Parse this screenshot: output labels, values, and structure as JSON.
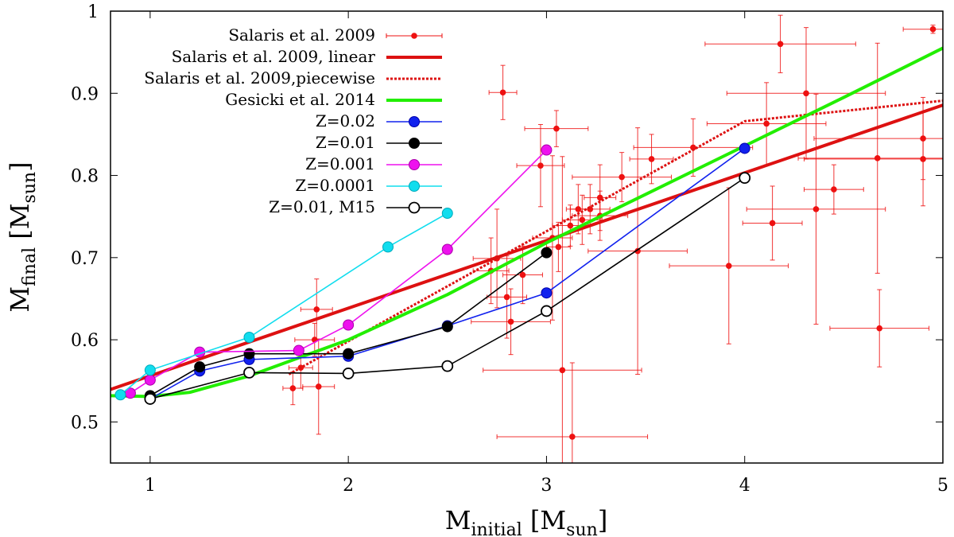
{
  "chart_data": {
    "type": "scatter",
    "xlabel": {
      "main": "M",
      "sub": "initial",
      "unit_open": " [M",
      "unit_sub": "sun",
      "unit_close": "]"
    },
    "ylabel": {
      "main": "M",
      "sub": "final",
      "unit_open": " [M",
      "unit_sub": "sun",
      "unit_close": "]"
    },
    "xlim": [
      0.8,
      5.0
    ],
    "ylim": [
      0.45,
      1.0
    ],
    "xticks": [
      1,
      2,
      3,
      4,
      5
    ],
    "xtick_labels": [
      "1",
      "2",
      "3",
      "4",
      "5"
    ],
    "yticks": [
      0.5,
      0.6,
      0.7,
      0.8,
      0.9,
      1.0
    ],
    "ytick_labels": [
      "0.5",
      "0.6",
      "0.7",
      "0.8",
      "0.9",
      "1"
    ],
    "legend_position": "top-left",
    "observations": {
      "name": "Salaris et al. 2009",
      "color": "#ee1111",
      "points": [
        {
          "x": 1.72,
          "y": 0.541,
          "xe": 0.05,
          "ye": 0.02
        },
        {
          "x": 1.76,
          "y": 0.566,
          "xe": 0.06,
          "ye": 0.025
        },
        {
          "x": 1.84,
          "y": 0.637,
          "xe": 0.08,
          "ye": 0.037
        },
        {
          "x": 1.85,
          "y": 0.543,
          "xe": 0.08,
          "ye": 0.058
        },
        {
          "x": 1.83,
          "y": 0.6,
          "xe": 0.1,
          "ye": 0.02
        },
        {
          "x": 2.78,
          "y": 0.901,
          "xe": 0.07,
          "ye": 0.033
        },
        {
          "x": 2.72,
          "y": 0.684,
          "xe": 0.09,
          "ye": 0.04
        },
        {
          "x": 2.75,
          "y": 0.699,
          "xe": 0.12,
          "ye": 0.06
        },
        {
          "x": 2.8,
          "y": 0.652,
          "xe": 0.1,
          "ye": 0.05
        },
        {
          "x": 2.82,
          "y": 0.622,
          "xe": 0.2,
          "ye": 0.04
        },
        {
          "x": 2.88,
          "y": 0.679,
          "xe": 0.1,
          "ye": 0.035
        },
        {
          "x": 2.97,
          "y": 0.812,
          "xe": 0.12,
          "ye": 0.05
        },
        {
          "x": 3.05,
          "y": 0.857,
          "xe": 0.16,
          "ye": 0.022
        },
        {
          "x": 3.03,
          "y": 0.724,
          "xe": 0.1,
          "ye": 0.1
        },
        {
          "x": 3.06,
          "y": 0.713,
          "xe": 0.06,
          "ye": 0.03
        },
        {
          "x": 3.08,
          "y": 0.563,
          "xe": 0.4,
          "ye": 0.26
        },
        {
          "x": 3.13,
          "y": 0.482,
          "xe": 0.38,
          "ye": 0.09
        },
        {
          "x": 3.12,
          "y": 0.739,
          "xe": 0.09,
          "ye": 0.025
        },
        {
          "x": 3.16,
          "y": 0.759,
          "xe": 0.06,
          "ye": 0.03
        },
        {
          "x": 3.18,
          "y": 0.746,
          "xe": 0.1,
          "ye": 0.03
        },
        {
          "x": 3.22,
          "y": 0.759,
          "xe": 0.1,
          "ye": 0.03
        },
        {
          "x": 3.27,
          "y": 0.773,
          "xe": 0.08,
          "ye": 0.04
        },
        {
          "x": 3.27,
          "y": 0.751,
          "xe": 0.14,
          "ye": 0.03
        },
        {
          "x": 3.38,
          "y": 0.798,
          "xe": 0.25,
          "ye": 0.03
        },
        {
          "x": 3.46,
          "y": 0.708,
          "xe": 0.25,
          "ye": 0.15
        },
        {
          "x": 3.53,
          "y": 0.82,
          "xe": 0.11,
          "ye": 0.03
        },
        {
          "x": 3.74,
          "y": 0.834,
          "xe": 0.3,
          "ye": 0.035
        },
        {
          "x": 3.92,
          "y": 0.69,
          "xe": 0.3,
          "ye": 0.095
        },
        {
          "x": 4.11,
          "y": 0.863,
          "xe": 0.3,
          "ye": 0.05
        },
        {
          "x": 4.14,
          "y": 0.742,
          "xe": 0.15,
          "ye": 0.045
        },
        {
          "x": 4.18,
          "y": 0.96,
          "xe": 0.38,
          "ye": 0.035
        },
        {
          "x": 4.31,
          "y": 0.9,
          "xe": 0.4,
          "ye": 0.08
        },
        {
          "x": 4.36,
          "y": 0.759,
          "xe": 0.35,
          "ye": 0.14
        },
        {
          "x": 4.45,
          "y": 0.783,
          "xe": 0.15,
          "ye": 0.03
        },
        {
          "x": 4.67,
          "y": 0.821,
          "xe": 0.4,
          "ye": 0.14
        },
        {
          "x": 4.68,
          "y": 0.614,
          "xe": 0.25,
          "ye": 0.047
        },
        {
          "x": 4.9,
          "y": 0.845,
          "xe": 0.55,
          "ye": 0.05
        },
        {
          "x": 4.9,
          "y": 0.82,
          "xe": 0.6,
          "ye": 0.057
        },
        {
          "x": 4.95,
          "y": 0.978,
          "xe": 0.15,
          "ye": 0.005
        }
      ]
    },
    "lines": [
      {
        "name": "Salaris et al. 2009, linear",
        "color": "#dd1111",
        "width": 4,
        "dash": "",
        "x": [
          0.8,
          5.0
        ],
        "y": [
          0.5396,
          0.8856
        ]
      },
      {
        "name": "Salaris et al. 2009,piecewise",
        "color": "#dd1111",
        "width": 3,
        "dash": "3,2",
        "x": [
          1.7,
          4.0,
          5.0
        ],
        "y": [
          0.558,
          0.866,
          0.891
        ]
      },
      {
        "name": "Gesicki et al. 2014",
        "color": "#22ee00",
        "width": 4,
        "dash": "",
        "x": [
          0.8,
          1.0,
          1.2,
          1.5,
          2.0,
          2.5,
          3.0,
          3.5,
          4.0,
          4.5,
          5.0
        ],
        "y": [
          0.532,
          0.531,
          0.536,
          0.556,
          0.6,
          0.655,
          0.718,
          0.777,
          0.836,
          0.895,
          0.955
        ]
      }
    ],
    "series": [
      {
        "name": "Z=0.02",
        "color": "#1122ee",
        "fill": "#1122ee",
        "stroke": "#0000aa",
        "hollow": false,
        "x": [
          1.0,
          1.25,
          1.5,
          2.0,
          2.5,
          3.0,
          4.0
        ],
        "y": [
          0.528,
          0.562,
          0.576,
          0.58,
          0.617,
          0.657,
          0.833
        ]
      },
      {
        "name": "Z=0.01",
        "color": "#000000",
        "fill": "#000000",
        "stroke": "#000000",
        "hollow": false,
        "x": [
          1.0,
          1.25,
          1.5,
          2.0,
          2.5,
          3.0
        ],
        "y": [
          0.532,
          0.567,
          0.583,
          0.583,
          0.616,
          0.706
        ]
      },
      {
        "name": "Z=0.001",
        "color": "#ee11ee",
        "fill": "#ee11ee",
        "stroke": "#aa00aa",
        "hollow": false,
        "x": [
          0.9,
          1.0,
          1.25,
          1.75,
          2.0,
          2.5,
          3.0
        ],
        "y": [
          0.535,
          0.551,
          0.585,
          0.587,
          0.618,
          0.71,
          0.831
        ]
      },
      {
        "name": "Z=0.0001",
        "color": "#11ddee",
        "fill": "#11ddee",
        "stroke": "#00aabb",
        "hollow": false,
        "x": [
          0.85,
          1.0,
          1.5,
          2.2,
          2.5
        ],
        "y": [
          0.533,
          0.563,
          0.603,
          0.713,
          0.754
        ]
      },
      {
        "name": "Z=0.01, M15",
        "color": "#000000",
        "fill": "#ffffff",
        "stroke": "#000000",
        "hollow": true,
        "x": [
          1.0,
          1.5,
          2.0,
          2.5,
          3.0,
          4.0
        ],
        "y": [
          0.528,
          0.56,
          0.559,
          0.568,
          0.635,
          0.797
        ]
      }
    ]
  }
}
